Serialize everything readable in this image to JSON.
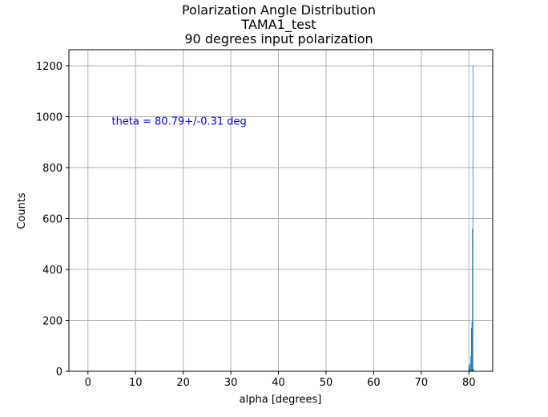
{
  "chart_data": {
    "type": "bar",
    "title_lines": [
      "Polarization Angle Distribution",
      "TAMA1_test",
      "90 degrees input polarization"
    ],
    "xlabel": "alpha [degrees]",
    "ylabel": "Counts",
    "xlim": [
      -4,
      85
    ],
    "ylim": [
      0,
      1200
    ],
    "ylim_plot": [
      0,
      1200
    ],
    "x_ticks": [
      0,
      10,
      20,
      30,
      40,
      50,
      60,
      70,
      80
    ],
    "x_tick_labels": [
      "0",
      "10",
      "20",
      "30",
      "40",
      "50",
      "60",
      "70",
      "80"
    ],
    "y_ticks": [
      0,
      200,
      400,
      600,
      800,
      1000,
      1200
    ],
    "y_tick_labels": [
      "0",
      "200",
      "400",
      "600",
      "800",
      "1000",
      "1200"
    ],
    "grid": true,
    "bin_width": 0.11,
    "x": [
      79.95,
      80.06,
      80.17,
      80.28,
      80.39,
      80.5,
      80.61,
      80.72,
      80.83,
      80.94,
      81.05
    ],
    "values": [
      20,
      25,
      30,
      10,
      60,
      170,
      195,
      560,
      1200,
      10,
      5
    ],
    "bar_color": "#1f77b4",
    "annotation": {
      "text": "theta = 80.79+/-0.31 deg",
      "color": "#0000ff",
      "x": 5,
      "y": 1000
    }
  }
}
